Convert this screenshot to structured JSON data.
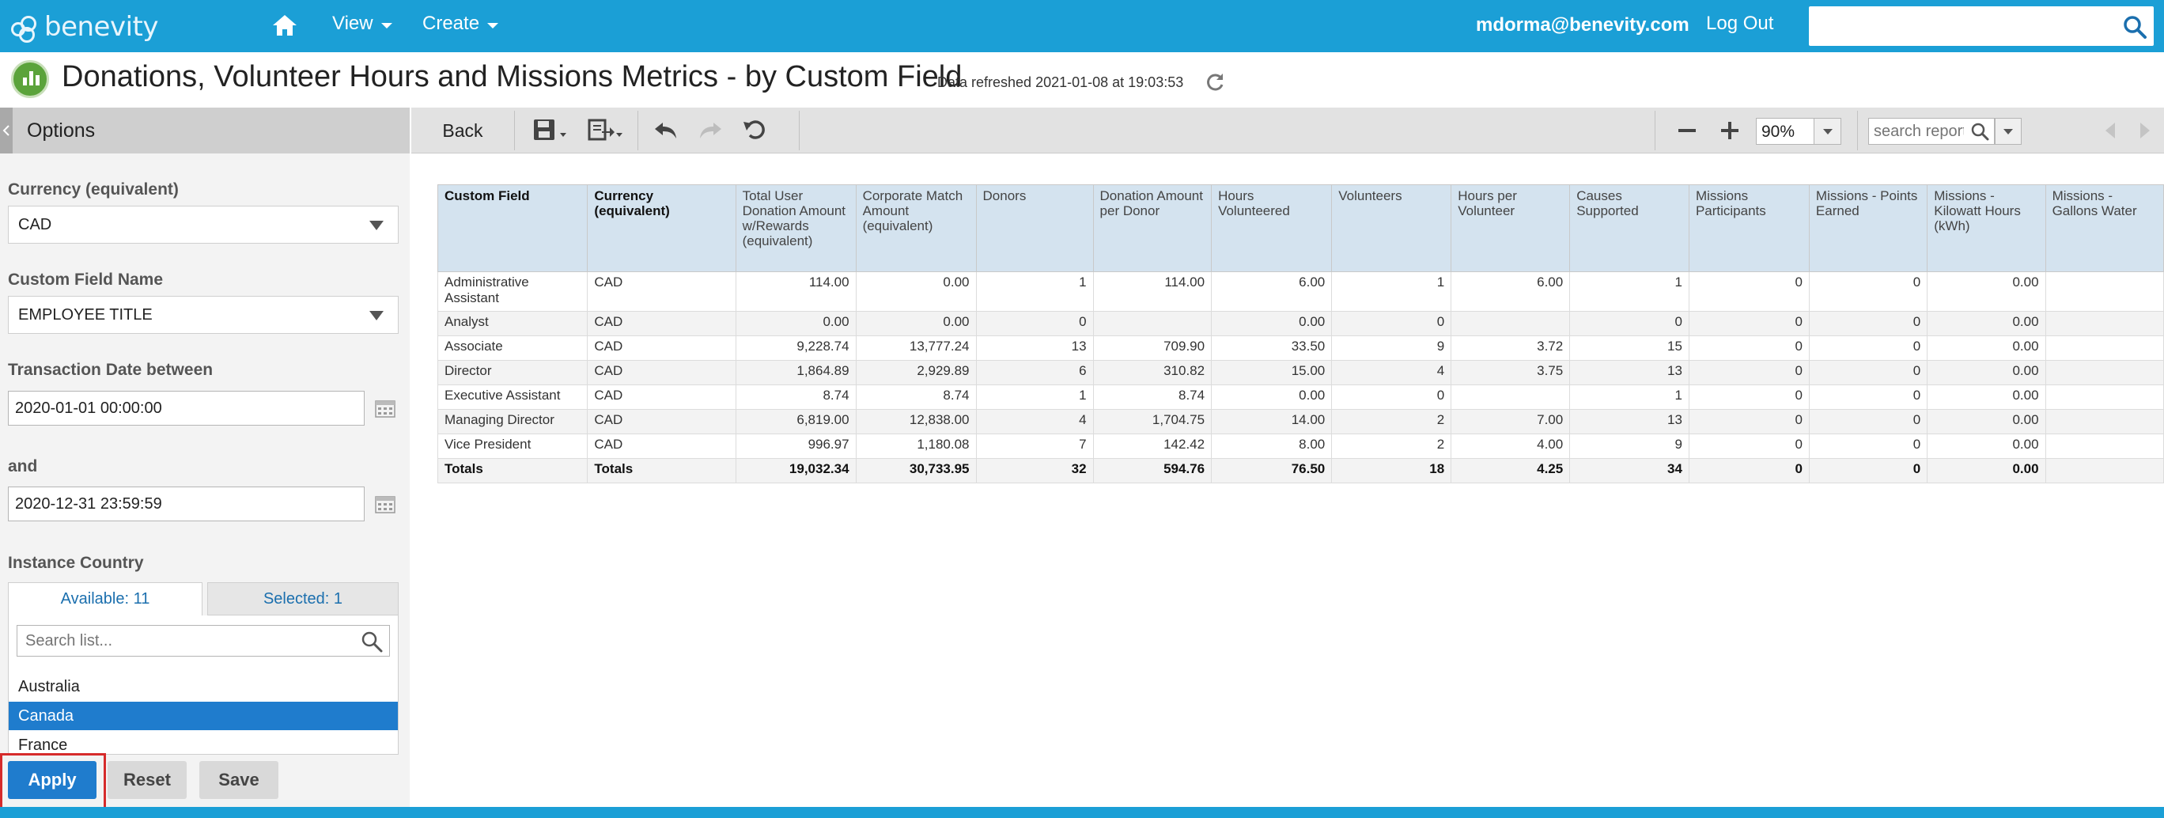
{
  "brand": {
    "name": "benevity"
  },
  "nav": {
    "home_icon": "home-icon",
    "items": [
      {
        "label": "View"
      },
      {
        "label": "Create"
      }
    ],
    "user_email": "mdorma@benevity.com",
    "logout": "Log Out",
    "search_placeholder": ""
  },
  "header": {
    "title": "Donations, Volunteer Hours and Missions Metrics - by Custom Field",
    "refreshed": "Data refreshed 2021-01-08 at 19:03:53"
  },
  "options": {
    "title": "Options",
    "currency_label": "Currency (equivalent)",
    "currency_value": "CAD",
    "custom_field_label": "Custom Field Name",
    "custom_field_value": "EMPLOYEE TITLE",
    "date_between_label": "Transaction Date between",
    "date_from": "2020-01-01 00:00:00",
    "and_label": "and",
    "date_to": "2020-12-31 23:59:59",
    "country_label": "Instance Country",
    "tab_available": "Available: 11",
    "tab_selected": "Selected: 1",
    "list_search_placeholder": "Search list...",
    "countries": [
      "Australia",
      "Canada",
      "France"
    ],
    "apply": "Apply",
    "reset": "Reset",
    "save": "Save"
  },
  "toolbar": {
    "back": "Back",
    "zoom": "90%",
    "search_placeholder": "search report"
  },
  "table": {
    "headers": [
      "Custom Field",
      "Currency (equivalent)",
      "Total User Donation Amount w/Rewards (equivalent)",
      "Corporate Match Amount (equivalent)",
      "Donors",
      "Donation Amount per Donor",
      "Hours Volunteered",
      "Volunteers",
      "Hours per Volunteer",
      "Causes Supported",
      "Missions Participants",
      "Missions - Points Earned",
      "Missions - Kilowatt Hours (kWh)",
      "Missions - Gallons Water"
    ],
    "rows": [
      [
        "Administrative Assistant",
        "CAD",
        "114.00",
        "0.00",
        "1",
        "114.00",
        "6.00",
        "1",
        "6.00",
        "1",
        "0",
        "0",
        "0.00",
        ""
      ],
      [
        "Analyst",
        "CAD",
        "0.00",
        "0.00",
        "0",
        "",
        "0.00",
        "0",
        "",
        "0",
        "0",
        "0",
        "0.00",
        ""
      ],
      [
        "Associate",
        "CAD",
        "9,228.74",
        "13,777.24",
        "13",
        "709.90",
        "33.50",
        "9",
        "3.72",
        "15",
        "0",
        "0",
        "0.00",
        ""
      ],
      [
        "Director",
        "CAD",
        "1,864.89",
        "2,929.89",
        "6",
        "310.82",
        "15.00",
        "4",
        "3.75",
        "13",
        "0",
        "0",
        "0.00",
        ""
      ],
      [
        "Executive Assistant",
        "CAD",
        "8.74",
        "8.74",
        "1",
        "8.74",
        "0.00",
        "0",
        "",
        "1",
        "0",
        "0",
        "0.00",
        ""
      ],
      [
        "Managing Director",
        "CAD",
        "6,819.00",
        "12,838.00",
        "4",
        "1,704.75",
        "14.00",
        "2",
        "7.00",
        "13",
        "0",
        "0",
        "0.00",
        ""
      ],
      [
        "Vice President",
        "CAD",
        "996.97",
        "1,180.08",
        "7",
        "142.42",
        "8.00",
        "2",
        "4.00",
        "9",
        "0",
        "0",
        "0.00",
        ""
      ]
    ],
    "totals": [
      "Totals",
      "Totals",
      "19,032.34",
      "30,733.95",
      "32",
      "594.76",
      "76.50",
      "18",
      "4.25",
      "34",
      "0",
      "0",
      "0.00",
      ""
    ]
  },
  "colors": {
    "topbar": "#1b9fd6",
    "apply": "#1f7ccd",
    "header_cell": "#d4e3ef",
    "highlight_outline": "#d62b2b"
  }
}
